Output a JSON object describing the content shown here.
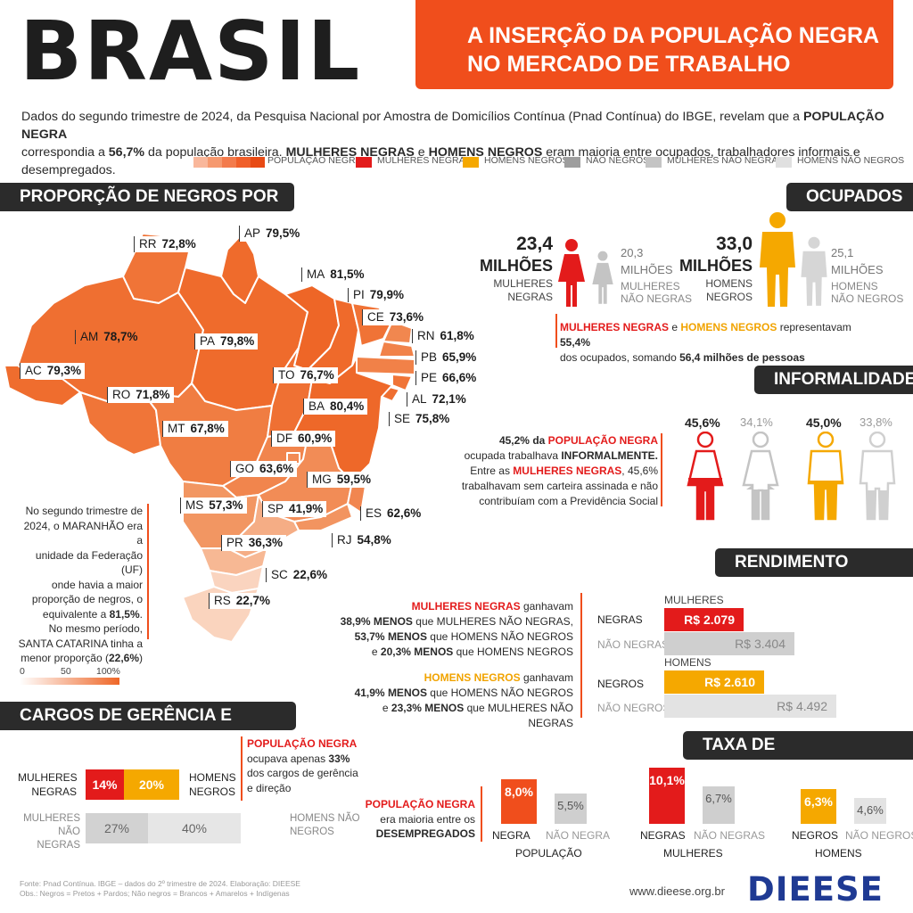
{
  "header": {
    "brand": "BRASIL",
    "title_line1": "A INSERÇÃO DA POPULAÇÃO NEGRA",
    "title_line2": "NO MERCADO DE TRABALHO"
  },
  "intro": {
    "p1": "Dados do segundo trimestre de 2024, da Pesquisa Nacional por Amostra de Domicílios Contínua (Pnad Contínua) do IBGE, revelam que a ",
    "b1": "POPULAÇÃO NEGRA",
    "p2": "correspondia a ",
    "b2": "56,7%",
    "p3": " da população brasileira. ",
    "b3": "MULHERES NEGRAS",
    "p4": " e ",
    "b4": "HOMENS NEGROS",
    "p5": " eram maioria entre ocupados, trabalhadores informais e desempregados."
  },
  "legend": {
    "items": [
      {
        "label": "POPULAÇÃO NEGRA",
        "color": "#f06a3a"
      },
      {
        "label": "MULHERES NEGRAS",
        "color": "#e31b1b"
      },
      {
        "label": "HOMENS NEGROS",
        "color": "#f5a800"
      },
      {
        "label": "NÃO NEGROS",
        "color": "#9e9e9e"
      },
      {
        "label": "MULHERES NÃO NEGRAS",
        "color": "#c4c4c4"
      },
      {
        "label": "HOMENS NÃO NEGROS",
        "color": "#e0e0e0"
      }
    ]
  },
  "sections": {
    "uf": "PROPORÇÃO DE NEGROS POR UF",
    "ocupados": "OCUPADOS",
    "informalidade": "INFORMALIDADE",
    "rendimento": "RENDIMENTO MÉDIO",
    "cargos": "CARGOS DE GERÊNCIA E DIREÇÃO",
    "desocupacao": "TAXA DE DESOCUPAÇÃO"
  },
  "chart_data": [
    {
      "type": "table",
      "name": "PROPORÇÃO DE NEGROS POR UF",
      "unit": "%",
      "states": [
        {
          "uf": "RR",
          "value": "72,8%"
        },
        {
          "uf": "AP",
          "value": "79,5%"
        },
        {
          "uf": "MA",
          "value": "81,5%"
        },
        {
          "uf": "PI",
          "value": "79,9%"
        },
        {
          "uf": "CE",
          "value": "73,6%"
        },
        {
          "uf": "AM",
          "value": "78,7%"
        },
        {
          "uf": "PA",
          "value": "79,8%"
        },
        {
          "uf": "RN",
          "value": "61,8%"
        },
        {
          "uf": "AC",
          "value": "79,3%"
        },
        {
          "uf": "PB",
          "value": "65,9%"
        },
        {
          "uf": "TO",
          "value": "76,7%"
        },
        {
          "uf": "PE",
          "value": "66,6%"
        },
        {
          "uf": "RO",
          "value": "71,8%"
        },
        {
          "uf": "AL",
          "value": "72,1%"
        },
        {
          "uf": "BA",
          "value": "80,4%"
        },
        {
          "uf": "SE",
          "value": "75,8%"
        },
        {
          "uf": "MT",
          "value": "67,8%"
        },
        {
          "uf": "DF",
          "value": "60,9%"
        },
        {
          "uf": "GO",
          "value": "63,6%"
        },
        {
          "uf": "MG",
          "value": "59,5%"
        },
        {
          "uf": "MS",
          "value": "57,3%"
        },
        {
          "uf": "SP",
          "value": "41,9%"
        },
        {
          "uf": "ES",
          "value": "62,6%"
        },
        {
          "uf": "RJ",
          "value": "54,8%"
        },
        {
          "uf": "PR",
          "value": "36,3%"
        },
        {
          "uf": "SC",
          "value": "22,6%"
        },
        {
          "uf": "RS",
          "value": "22,7%"
        }
      ],
      "scale": [
        "0",
        "50",
        "100%"
      ]
    },
    {
      "type": "bar",
      "name": "RENDIMENTO MÉDIO",
      "groups": [
        {
          "label": "MULHERES",
          "rows": [
            {
              "label": "NEGRAS",
              "display": "R$ 2.079",
              "value": 2079,
              "color": "#e31b1b"
            },
            {
              "label": "NÃO NEGRAS",
              "display": "R$ 3.404",
              "value": 3404,
              "color": "#cfcfcf"
            }
          ]
        },
        {
          "label": "HOMENS",
          "rows": [
            {
              "label": "NEGROS",
              "display": "R$ 2.610",
              "value": 2610,
              "color": "#f5a800"
            },
            {
              "label": "NÃO NEGROS",
              "display": "R$ 4.492",
              "value": 4492,
              "color": "#e3e3e3"
            }
          ]
        }
      ]
    },
    {
      "type": "bar",
      "name": "TAXA DE DESOCUPAÇÃO",
      "groups": [
        {
          "label": "POPULAÇÃO",
          "bars": [
            {
              "label": "NEGRA",
              "display": "8,0%",
              "value": 8.0,
              "color": "#f04e1c"
            },
            {
              "label": "NÃO NEGRA",
              "display": "5,5%",
              "value": 5.5,
              "color": "#cfcfcf"
            }
          ]
        },
        {
          "label": "MULHERES",
          "bars": [
            {
              "label": "NEGRAS",
              "display": "10,1%",
              "value": 10.1,
              "color": "#e31b1b"
            },
            {
              "label": "NÃO NEGRAS",
              "display": "6,7%",
              "value": 6.7,
              "color": "#cfcfcf"
            }
          ]
        },
        {
          "label": "HOMENS",
          "bars": [
            {
              "label": "NEGROS",
              "display": "6,3%",
              "value": 6.3,
              "color": "#f5a800"
            },
            {
              "label": "NÃO NEGROS",
              "display": "4,6%",
              "value": 4.6,
              "color": "#e3e3e3"
            }
          ]
        }
      ]
    },
    {
      "type": "bar",
      "name": "CARGOS DE GERÊNCIA E DIREÇÃO",
      "rows": [
        {
          "left": "MULHERES NEGRAS",
          "right": "HOMENS NEGROS",
          "a": "14%",
          "b": "20%",
          "va": 14,
          "vb": 20
        },
        {
          "left": "MULHERES NÃO NEGRAS",
          "right": "HOMENS NÃO NEGROS",
          "a": "27%",
          "b": "40%",
          "va": 27,
          "vb": 40
        }
      ]
    }
  ],
  "maranhao_note": {
    "l1": "No segundo trimestre de",
    "l2": "2024, o MARANHÃO era a",
    "l3": "unidade da Federação (UF)",
    "l4": "onde havia a maior",
    "l5": "proporção de negros, o",
    "l6": "equivalente a ",
    "b6": "81,5%",
    "l7": "No mesmo período,",
    "l8": "SANTA CATARINA tinha a",
    "l9": "menor proporção (",
    "b9": "22,6%",
    "l9e": ")"
  },
  "ocupados": {
    "mn_value": "23,4",
    "mn_unit": "MILHÕES",
    "mn_l1": "MULHERES",
    "mn_l2": "NEGRAS",
    "mnn_value": "20,3",
    "mnn_unit": "MILHÕES",
    "mnn_l1": "MULHERES",
    "mnn_l2": "NÃO NEGRAS",
    "hn_value": "33,0",
    "hn_unit": "MILHÕES",
    "hn_l1": "HOMENS",
    "hn_l2": "NEGROS",
    "hnn_value": "25,1",
    "hnn_unit": "MILHÕES",
    "hnn_l1": "HOMENS",
    "hnn_l2": "NÃO NEGROS",
    "s1": "MULHERES NEGRAS",
    "s2": " e ",
    "s3": "HOMENS NEGROS",
    "s4": " representavam ",
    "s5": "55,4%",
    "s6": "dos ocupados, somando ",
    "s7": "56,4 milhões de pessoas"
  },
  "informalidade": {
    "t1": "45,2% da ",
    "t1b": "POPULAÇÃO NEGRA",
    "t2": "ocupada trabalhava ",
    "t2b": "INFORMALMENTE.",
    "t3": "Entre as ",
    "t3b": "MULHERES NEGRAS",
    "t3c": ", 45,6%",
    "t4": "trabalhavam sem carteira assinada e não",
    "t5": "contribuíam com a Previdência Social",
    "v1": "45,6%",
    "v2": "34,1%",
    "v3": "45,0%",
    "v4": "33,8%"
  },
  "rendimento_text": {
    "a1": "MULHERES NEGRAS",
    "a1e": " ganhavam",
    "a2": "38,9% MENOS",
    "a2e": " que MULHERES NÃO NEGRAS,",
    "a3": "53,7% MENOS",
    "a3e": " que HOMENS NÃO NEGROS",
    "a4": "e ",
    "a4b": "20,3% MENOS",
    "a4e": " que HOMENS NEGROS",
    "b1": "HOMENS NEGROS",
    "b1e": " ganhavam",
    "b2": "41,9% MENOS",
    "b2e": " que HOMENS NÃO NEGROS",
    "b3": "e ",
    "b3b": "23,3% MENOS",
    "b3e": " que MULHERES NÃO NEGRAS"
  },
  "cargos_text": {
    "l1": "POPULAÇÃO NEGRA",
    "l2": "ocupava apenas ",
    "l2b": "33%",
    "l3": "dos cargos de gerência",
    "l4": "e direção"
  },
  "desoc_text": {
    "l1": "POPULAÇÃO NEGRA",
    "l2": "era maioria entre os",
    "l3": "DESEMPREGADOS"
  },
  "footer": {
    "source1": "Fonte: Pnad Contínua. IBGE – dados do 2º trimestre de 2024. Elaboração: DIEESE",
    "source2": "Obs.: Negros = Pretos + Pardos; Não negros = Brancos + Amarelos + Indígenas",
    "url": "www.dieese.org.br",
    "logo": "DIEESE"
  }
}
